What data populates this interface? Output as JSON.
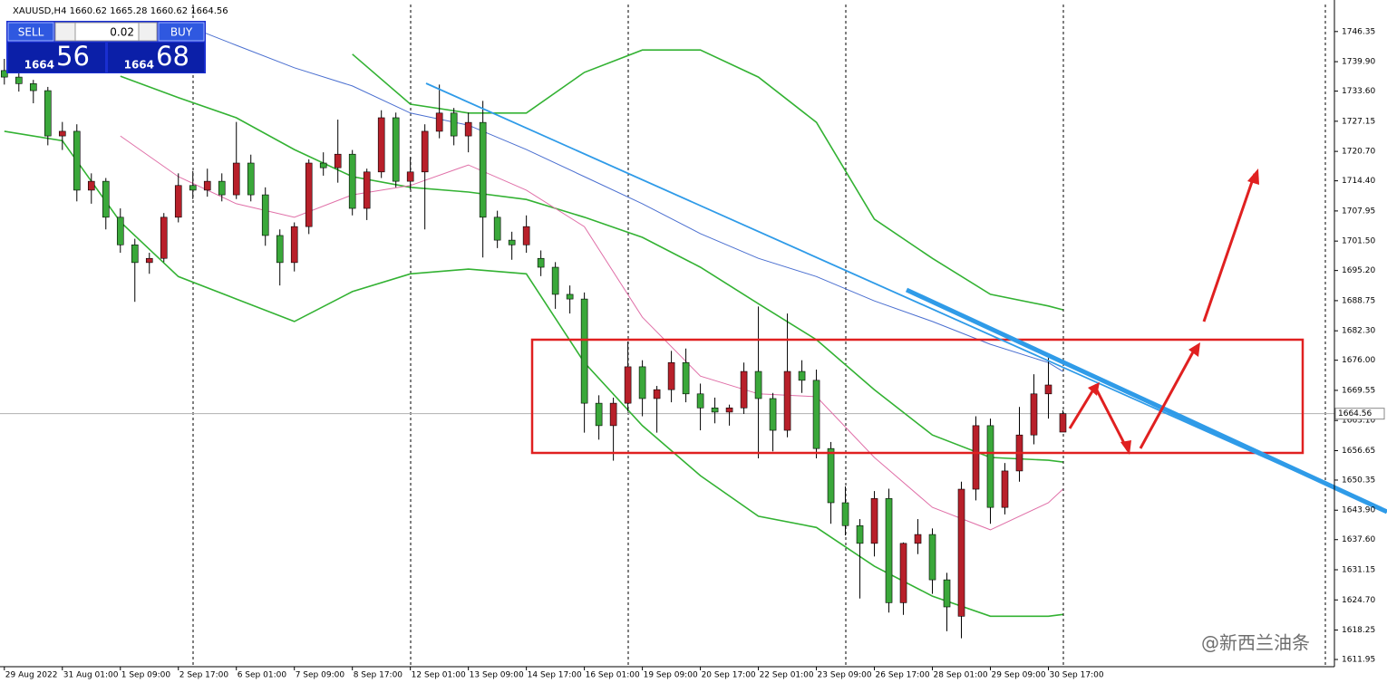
{
  "chart_data": {
    "type": "candlestick",
    "symbol": "XAUUSD,H4",
    "up_color": "#b8202a",
    "down_color": "#3aa83a",
    "candles": [
      [
        1738.0,
        1740.5,
        1735.0,
        1736.6
      ],
      [
        1736.6,
        1738.0,
        1733.5,
        1735.2
      ],
      [
        1735.2,
        1736.0,
        1731.0,
        1733.7
      ],
      [
        1733.7,
        1734.5,
        1722.0,
        1724.0
      ],
      [
        1724.0,
        1727.0,
        1721.0,
        1725.0
      ],
      [
        1725.0,
        1726.5,
        1710.0,
        1712.4
      ],
      [
        1712.4,
        1716.0,
        1709.5,
        1714.3
      ],
      [
        1714.3,
        1715.0,
        1704.0,
        1706.6
      ],
      [
        1706.6,
        1708.5,
        1699.0,
        1700.7
      ],
      [
        1700.7,
        1702.0,
        1688.5,
        1696.9
      ],
      [
        1696.9,
        1699.0,
        1694.5,
        1697.8
      ],
      [
        1697.8,
        1707.5,
        1697.0,
        1706.6
      ],
      [
        1706.6,
        1716.0,
        1705.5,
        1713.4
      ],
      [
        1713.4,
        1716.5,
        1710.5,
        1712.4
      ],
      [
        1712.4,
        1717.0,
        1711.0,
        1714.3
      ],
      [
        1714.3,
        1716.0,
        1710.0,
        1711.4
      ],
      [
        1711.4,
        1727.0,
        1710.5,
        1718.2
      ],
      [
        1718.2,
        1720.0,
        1710.0,
        1711.4
      ],
      [
        1711.4,
        1713.0,
        1700.5,
        1702.7
      ],
      [
        1702.7,
        1704.0,
        1692.0,
        1696.9
      ],
      [
        1696.9,
        1705.5,
        1695.0,
        1704.6
      ],
      [
        1704.6,
        1719.0,
        1703.0,
        1718.2
      ],
      [
        1718.2,
        1720.5,
        1715.5,
        1717.2
      ],
      [
        1717.2,
        1727.5,
        1714.0,
        1720.1
      ],
      [
        1720.1,
        1721.0,
        1707.0,
        1708.5
      ],
      [
        1708.5,
        1717.0,
        1706.0,
        1716.3
      ],
      [
        1716.3,
        1729.5,
        1715.0,
        1727.9
      ],
      [
        1727.9,
        1729.0,
        1713.0,
        1714.3
      ],
      [
        1714.3,
        1719.5,
        1712.5,
        1716.3
      ],
      [
        1716.3,
        1726.5,
        1704.0,
        1725.0
      ],
      [
        1725.0,
        1735.0,
        1723.5,
        1728.9
      ],
      [
        1728.9,
        1730.0,
        1722.0,
        1724.0
      ],
      [
        1724.0,
        1729.0,
        1720.5,
        1726.9
      ],
      [
        1726.9,
        1731.5,
        1698.0,
        1706.6
      ],
      [
        1706.6,
        1708.0,
        1700.0,
        1701.7
      ],
      [
        1701.7,
        1703.5,
        1697.5,
        1700.7
      ],
      [
        1700.7,
        1707.0,
        1699.0,
        1704.6
      ],
      [
        1697.8,
        1699.5,
        1694.0,
        1695.9
      ],
      [
        1695.9,
        1697.0,
        1687.0,
        1690.1
      ],
      [
        1690.1,
        1692.0,
        1686.0,
        1689.1
      ],
      [
        1689.1,
        1690.5,
        1660.5,
        1666.8
      ],
      [
        1666.8,
        1668.5,
        1659.0,
        1662.0
      ],
      [
        1662.0,
        1668.0,
        1654.5,
        1666.8
      ],
      [
        1666.8,
        1680.0,
        1665.0,
        1674.6
      ],
      [
        1674.6,
        1676.0,
        1664.0,
        1667.8
      ],
      [
        1667.8,
        1670.5,
        1660.5,
        1669.7
      ],
      [
        1669.7,
        1678.0,
        1667.0,
        1675.5
      ],
      [
        1675.5,
        1678.5,
        1667.0,
        1668.8
      ],
      [
        1668.8,
        1671.0,
        1661.0,
        1665.8
      ],
      [
        1665.8,
        1668.0,
        1662.5,
        1664.9
      ],
      [
        1664.9,
        1666.5,
        1662.0,
        1665.8
      ],
      [
        1665.8,
        1675.5,
        1664.5,
        1673.6
      ],
      [
        1673.6,
        1687.5,
        1655.0,
        1667.8
      ],
      [
        1667.8,
        1669.0,
        1656.5,
        1661.0
      ],
      [
        1661.0,
        1686.0,
        1659.5,
        1673.6
      ],
      [
        1673.6,
        1676.0,
        1669.0,
        1671.7
      ],
      [
        1671.7,
        1674.0,
        1655.0,
        1657.1
      ],
      [
        1657.1,
        1658.5,
        1641.0,
        1645.5
      ],
      [
        1645.5,
        1649.0,
        1638.5,
        1640.6
      ],
      [
        1640.6,
        1642.0,
        1625.0,
        1636.8
      ],
      [
        1636.8,
        1648.0,
        1634.0,
        1646.4
      ],
      [
        1646.4,
        1648.5,
        1622.0,
        1624.1
      ],
      [
        1624.1,
        1637.0,
        1621.5,
        1636.8
      ],
      [
        1636.8,
        1642.0,
        1634.5,
        1638.7
      ],
      [
        1638.7,
        1640.0,
        1626.0,
        1629.0
      ],
      [
        1629.0,
        1630.5,
        1618.0,
        1623.2
      ],
      [
        1621.2,
        1650.0,
        1616.5,
        1648.4
      ],
      [
        1648.4,
        1664.0,
        1646.0,
        1662.0
      ],
      [
        1662.0,
        1663.5,
        1641.0,
        1644.5
      ],
      [
        1644.5,
        1654.0,
        1643.0,
        1652.3
      ],
      [
        1652.3,
        1666.0,
        1650.0,
        1660.0
      ],
      [
        1660.0,
        1673.0,
        1658.0,
        1668.8
      ],
      [
        1668.8,
        1676.5,
        1663.5,
        1670.7
      ],
      [
        1660.62,
        1665.28,
        1660.62,
        1664.56
      ]
    ],
    "x": [
      0,
      4,
      8,
      12,
      16,
      20,
      24,
      28,
      32,
      36,
      40,
      44,
      48,
      52,
      56,
      60,
      64,
      68,
      72,
      73
    ],
    "series": [
      {
        "color": "#33b233",
        "values": [
          null,
          null,
          null,
          null,
          null,
          null,
          1741.5,
          1730.8,
          1728.9,
          1728.9,
          1737.6,
          1742.4,
          1742.4,
          1736.6,
          1726.9,
          1706.2,
          1697.8,
          1690.1,
          1687.6,
          1686.8
        ]
      },
      {
        "color": "#33b233",
        "values": [
          null,
          null,
          1736.8,
          1732.2,
          1727.9,
          1721.1,
          1715.3,
          1713.0,
          1712.0,
          1710.4,
          1706.6,
          1702.3,
          1695.9,
          1688.1,
          1680.4,
          1669.7,
          1660.0,
          1655.2,
          1654.6,
          1654.2
        ]
      },
      {
        "color": "#33b233",
        "values": [
          1725.0,
          1723.0,
          1705.6,
          1693.9,
          1689.1,
          1684.3,
          1690.7,
          1694.5,
          1695.5,
          1694.5,
          1675.5,
          1662.0,
          1651.3,
          1642.6,
          1640.2,
          1631.9,
          1625.5,
          1621.2,
          1621.2,
          1621.6
        ]
      },
      {
        "color": "#4a6fd0",
        "values": [
          null,
          null,
          null,
          1748.3,
          1743.4,
          1738.6,
          1734.7,
          1728.9,
          1726.3,
          1721.1,
          1715.3,
          1709.5,
          1703.1,
          1697.8,
          1693.9,
          1688.7,
          1684.3,
          1679.4,
          1675.5,
          1673.6
        ]
      },
      {
        "color": "#e070a8",
        "values": [
          null,
          null,
          1724.0,
          1715.3,
          1709.5,
          1706.6,
          1711.4,
          1713.4,
          1717.8,
          1712.4,
          1704.6,
          1685.2,
          1672.6,
          1668.8,
          1668.2,
          1655.2,
          1644.5,
          1639.7,
          1645.5,
          1648.4
        ]
      }
    ],
    "current_price": 1664.56,
    "xlim": [
      -0.3,
      91.6
    ],
    "ylim": [
      1610.6,
      1753.1
    ],
    "yticks": [
      1746.35,
      {
        "value": 1739.9,
        "label": "1739.90"
      },
      {
        "value": 1733.6,
        "label": "1733.60"
      },
      1727.15,
      {
        "value": 1720.7,
        "label": "1720.70"
      },
      {
        "value": 1714.4,
        "label": "1714.40"
      },
      1707.95,
      {
        "value": 1701.5,
        "label": "1701.50"
      },
      {
        "value": 1695.2,
        "label": "1695.20"
      },
      1688.75,
      {
        "value": 1682.3,
        "label": "1682.30"
      },
      {
        "value": 1676,
        "label": "1676.00"
      },
      1669.55,
      {
        "value": 1663.1,
        "label": "1663.10"
      },
      1656.65,
      1650.35,
      {
        "value": 1643.9,
        "label": "1643.90"
      },
      {
        "value": 1637.6,
        "label": "1637.60"
      },
      1631.15,
      {
        "value": 1624.7,
        "label": "1624.70"
      },
      1618.25,
      1611.95
    ],
    "xticks": [
      {
        "value": 0,
        "label": "29 Aug 2022"
      },
      {
        "value": 4,
        "label": "31 Aug 01:00"
      },
      {
        "value": 8,
        "label": "1 Sep 09:00"
      },
      {
        "value": 12,
        "label": "2 Sep 17:00"
      },
      {
        "value": 16,
        "label": "6 Sep 01:00"
      },
      {
        "value": 20,
        "label": "7 Sep 09:00"
      },
      {
        "value": 24,
        "label": "8 Sep 17:00"
      },
      {
        "value": 28,
        "label": "12 Sep 01:00"
      },
      {
        "value": 32,
        "label": "13 Sep 09:00"
      },
      {
        "value": 36,
        "label": "14 Sep 17:00"
      },
      {
        "value": 40,
        "label": "16 Sep 01:00"
      },
      {
        "value": 44,
        "label": "19 Sep 09:00"
      },
      {
        "value": 48,
        "label": "20 Sep 17:00"
      },
      {
        "value": 52,
        "label": "22 Sep 01:00"
      },
      {
        "value": 56,
        "label": "23 Sep 09:00"
      },
      {
        "value": 60,
        "label": "26 Sep 17:00"
      },
      {
        "value": 64,
        "label": "28 Sep 01:00"
      },
      {
        "value": 68,
        "label": "29 Sep 09:00"
      },
      {
        "value": 72,
        "label": "30 Sep 17:00"
      }
    ]
  },
  "trade_panel": {
    "sell": "SELL",
    "buy": "BUY",
    "lot": "0.02",
    "sell_big": "1664",
    "sell_small": "56",
    "buy_big": "1664",
    "buy_small": "68"
  },
  "watermark": "@新西兰油条"
}
